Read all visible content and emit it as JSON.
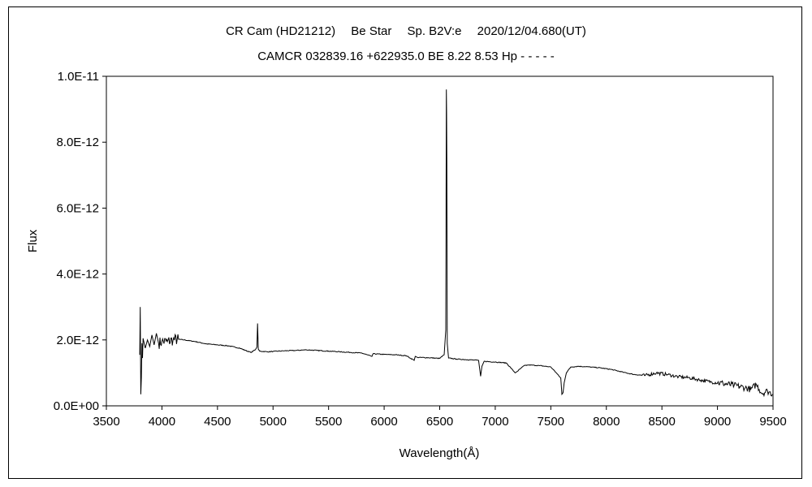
{
  "chart_data": {
    "type": "line",
    "title": "CR Cam (HD21212)　 Be Star　 Sp. B2V:e　 2020/12/04.680(UT)",
    "subtitle": "CAMCR 032839.16 +622935.0 BE 8.22 8.53 Hp - - - - -",
    "xlabel": "Wavelength(Å)",
    "ylabel": "Flux",
    "xlim": [
      3500,
      9500
    ],
    "ylim": [
      0,
      1e-11
    ],
    "x_ticks": [
      3500,
      4000,
      4500,
      5000,
      5500,
      6000,
      6500,
      7000,
      7500,
      8000,
      8500,
      9000,
      9500
    ],
    "y_ticks": [
      0,
      2e-12,
      4e-12,
      6e-12,
      8e-12,
      1e-11
    ],
    "y_tick_labels": [
      "0.0E+00",
      "2.0E-12",
      "4.0E-12",
      "6.0E-12",
      "8.0E-12",
      "1.0E-11"
    ],
    "grid": false,
    "line_color": "#000000",
    "series": [
      {
        "x": [
          3800,
          3805,
          3810,
          3815,
          3820,
          3825,
          3830,
          3850,
          3870,
          3890,
          3910,
          3930,
          3950,
          3970,
          4000,
          4050,
          4100,
          4150,
          4200,
          4300,
          4400,
          4500,
          4600,
          4700,
          4800,
          4840,
          4855,
          4861,
          4867,
          4880,
          4950,
          5000,
          5100,
          5200,
          5300,
          5400,
          5500,
          5600,
          5700,
          5800,
          5890,
          5900,
          6000,
          6100,
          6200,
          6270,
          6280,
          6300,
          6400,
          6500,
          6540,
          6555,
          6560,
          6562,
          6564,
          6568,
          6580,
          6650,
          6750,
          6850,
          6868,
          6880,
          6900,
          7000,
          7100,
          7180,
          7200,
          7260,
          7300,
          7400,
          7500,
          7590,
          7600,
          7610,
          7620,
          7640,
          7680,
          7750,
          7850,
          7950,
          8050,
          8150,
          8250,
          8350,
          8450,
          8550,
          8650,
          8750,
          8850,
          8950,
          9050,
          9150,
          9250,
          9300,
          9350,
          9400,
          9450,
          9500
        ],
        "y": [
          1.55e-12,
          3e-12,
          3.5e-13,
          8.5e-13,
          1.9e-12,
          1.45e-12,
          2.05e-12,
          1.75e-12,
          2e-12,
          1.8e-12,
          2.15e-12,
          1.85e-12,
          2.2e-12,
          1.9e-12,
          1.95e-12,
          1.95e-12,
          2e-12,
          2.02e-12,
          2e-12,
          1.95e-12,
          1.88e-12,
          1.85e-12,
          1.82e-12,
          1.75e-12,
          1.62e-12,
          1.7e-12,
          1.78e-12,
          2.5e-12,
          1.72e-12,
          1.66e-12,
          1.64e-12,
          1.65e-12,
          1.67e-12,
          1.68e-12,
          1.7e-12,
          1.68e-12,
          1.66e-12,
          1.64e-12,
          1.62e-12,
          1.6e-12,
          1.5e-12,
          1.58e-12,
          1.56e-12,
          1.55e-12,
          1.52e-12,
          1.38e-12,
          1.5e-12,
          1.47e-12,
          1.46e-12,
          1.44e-12,
          1.55e-12,
          2.3e-12,
          9.6e-12,
          8.9e-12,
          7.4e-12,
          1.9e-12,
          1.45e-12,
          1.42e-12,
          1.4e-12,
          1.38e-12,
          9e-13,
          1.2e-12,
          1.35e-12,
          1.33e-12,
          1.3e-12,
          1e-12,
          1.05e-12,
          1.22e-12,
          1.24e-12,
          1.22e-12,
          1.18e-12,
          8.5e-13,
          3.5e-13,
          4e-13,
          7e-13,
          1e-12,
          1.18e-12,
          1.2e-12,
          1.18e-12,
          1.15e-12,
          1.1e-12,
          1.02e-12,
          9.5e-13,
          9.2e-13,
          1e-12,
          9.5e-13,
          8.8e-13,
          8.5e-13,
          7.8e-13,
          7.2e-13,
          6.8e-13,
          6.2e-13,
          5.5e-13,
          5e-13,
          6.5e-13,
          3.8e-13,
          4.5e-13,
          3.5e-13
        ]
      }
    ]
  }
}
